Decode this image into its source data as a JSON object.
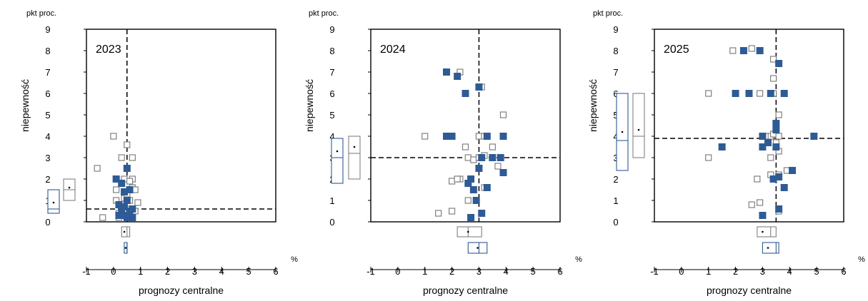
{
  "colors": {
    "filled": "#2e5b95",
    "hollow": "#808080",
    "axis": "#000000"
  },
  "icons": {
    "filled_marker": "filled-square-marker",
    "hollow_marker": "hollow-square-marker"
  },
  "chart_data": [
    {
      "type": "scatter",
      "title": "2023",
      "xlabel": "prognozy centralne",
      "ylabel": "niepewność",
      "y_unit": "pkt proc.",
      "x_unit": "%",
      "xlim": [
        -1,
        6
      ],
      "ylim": [
        0,
        9
      ],
      "x_ticks": [
        "-1",
        "0",
        "1",
        "2",
        "3",
        "4",
        "5",
        "6"
      ],
      "y_ticks": [
        "0",
        "1",
        "2",
        "3",
        "4",
        "5",
        "6",
        "7",
        "8",
        "9"
      ],
      "ref_x": 0.5,
      "ref_y": 0.6,
      "series": [
        {
          "style": "filled",
          "points": [
            [
              0.1,
              2.0
            ],
            [
              0.2,
              0.8
            ],
            [
              0.3,
              0.6
            ],
            [
              0.4,
              0.7
            ],
            [
              0.5,
              2.5
            ],
            [
              0.5,
              1.0
            ],
            [
              0.6,
              0.5
            ],
            [
              0.7,
              0.6
            ],
            [
              0.2,
              0.3
            ],
            [
              0.5,
              0.2
            ],
            [
              0.7,
              0.2
            ],
            [
              0.4,
              0.3
            ],
            [
              0.6,
              1.5
            ],
            [
              0.3,
              1.8
            ],
            [
              0.4,
              1.4
            ]
          ]
        },
        {
          "style": "hollow",
          "points": [
            [
              -0.6,
              2.5
            ],
            [
              0.0,
              4.0
            ],
            [
              0.5,
              3.6
            ],
            [
              0.3,
              3.0
            ],
            [
              0.7,
              3.0
            ],
            [
              0.1,
              1.5
            ],
            [
              0.4,
              2.0
            ],
            [
              0.7,
              2.0
            ],
            [
              0.6,
              1.9
            ],
            [
              0.7,
              1.6
            ],
            [
              0.8,
              1.5
            ],
            [
              0.1,
              1.0
            ],
            [
              0.4,
              1.1
            ],
            [
              0.5,
              1.3
            ],
            [
              0.6,
              1.0
            ],
            [
              0.9,
              0.9
            ],
            [
              0.2,
              0.4
            ],
            [
              0.4,
              0.5
            ],
            [
              0.6,
              0.6
            ],
            [
              -0.4,
              0.2
            ],
            [
              0.2,
              0.2
            ],
            [
              0.8,
              0.5
            ]
          ]
        }
      ],
      "y_boxes": [
        {
          "style": "filled",
          "q1": 0.4,
          "median": 0.6,
          "q3": 1.5,
          "mean": 0.9
        },
        {
          "style": "hollow",
          "q1": 1.0,
          "median": 1.5,
          "q3": 2.0,
          "mean": 1.6
        }
      ],
      "x_boxes": [
        {
          "style": "hollow",
          "q1": 0.3,
          "median": 0.5,
          "q3": 0.6,
          "mean": 0.4
        },
        {
          "style": "filled",
          "q1": 0.4,
          "median": 0.5,
          "q3": 0.5,
          "mean": 0.45
        }
      ]
    },
    {
      "type": "scatter",
      "title": "2024",
      "xlabel": "prognozy centralne",
      "ylabel": "niepewność",
      "y_unit": "pkt proc.",
      "x_unit": "%",
      "xlim": [
        -1,
        6
      ],
      "ylim": [
        0,
        9
      ],
      "x_ticks": [
        "-1",
        "0",
        "1",
        "2",
        "3",
        "4",
        "5",
        "6"
      ],
      "y_ticks": [
        "0",
        "1",
        "2",
        "3",
        "4",
        "5",
        "6",
        "7",
        "8",
        "9"
      ],
      "ref_x": 3.0,
      "ref_y": 3.0,
      "series": [
        {
          "style": "filled",
          "points": [
            [
              1.8,
              7.0
            ],
            [
              2.2,
              6.8
            ],
            [
              2.5,
              6.0
            ],
            [
              3.0,
              6.3
            ],
            [
              1.8,
              4.0
            ],
            [
              2.0,
              4.0
            ],
            [
              3.3,
              4.0
            ],
            [
              3.9,
              4.0
            ],
            [
              3.1,
              3.0
            ],
            [
              3.5,
              3.0
            ],
            [
              3.8,
              3.0
            ],
            [
              3.0,
              2.5
            ],
            [
              3.9,
              2.3
            ],
            [
              2.6,
              1.8
            ],
            [
              2.7,
              2.0
            ],
            [
              2.8,
              1.5
            ],
            [
              3.3,
              1.6
            ],
            [
              2.9,
              1.0
            ],
            [
              2.7,
              0.2
            ],
            [
              3.1,
              0.4
            ]
          ]
        },
        {
          "style": "hollow",
          "points": [
            [
              2.3,
              7.0
            ],
            [
              3.1,
              6.3
            ],
            [
              3.9,
              5.0
            ],
            [
              1.0,
              4.0
            ],
            [
              2.0,
              4.0
            ],
            [
              3.0,
              4.0
            ],
            [
              3.2,
              4.0
            ],
            [
              3.5,
              3.5
            ],
            [
              2.5,
              3.5
            ],
            [
              2.6,
              3.0
            ],
            [
              2.8,
              2.9
            ],
            [
              3.0,
              3.0
            ],
            [
              3.2,
              3.1
            ],
            [
              3.7,
              2.6
            ],
            [
              2.0,
              1.9
            ],
            [
              2.3,
              2.0
            ],
            [
              2.2,
              2.0
            ],
            [
              3.2,
              1.6
            ],
            [
              2.6,
              1.0
            ],
            [
              2.0,
              0.5
            ],
            [
              1.5,
              0.4
            ]
          ]
        }
      ],
      "y_boxes": [
        {
          "style": "filled",
          "q1": 1.8,
          "median": 3.0,
          "q3": 3.9,
          "mean": 3.3
        },
        {
          "style": "hollow",
          "q1": 2.0,
          "median": 3.2,
          "q3": 4.0,
          "mean": 3.5
        }
      ],
      "x_boxes": [
        {
          "style": "hollow",
          "q1": 2.2,
          "median": 2.6,
          "q3": 3.1,
          "mean": 2.6
        },
        {
          "style": "filled",
          "q1": 2.6,
          "median": 3.0,
          "q3": 3.3,
          "mean": 2.95
        }
      ]
    },
    {
      "type": "scatter",
      "title": "2025",
      "xlabel": "prognozy centralne",
      "ylabel": "niepewność",
      "y_unit": "pkt proc.",
      "x_unit": "%",
      "xlim": [
        -1,
        6
      ],
      "ylim": [
        0,
        9
      ],
      "x_ticks": [
        "-1",
        "0",
        "1",
        "2",
        "3",
        "4",
        "5",
        "6"
      ],
      "y_ticks": [
        "0",
        "1",
        "2",
        "3",
        "4",
        "5",
        "6",
        "7",
        "8",
        "9"
      ],
      "ref_x": 3.5,
      "ref_y": 3.9,
      "series": [
        {
          "style": "filled",
          "points": [
            [
              2.3,
              8.0
            ],
            [
              2.9,
              8.0
            ],
            [
              3.6,
              7.4
            ],
            [
              2.0,
              6.0
            ],
            [
              2.5,
              6.0
            ],
            [
              3.3,
              6.0
            ],
            [
              3.8,
              6.0
            ],
            [
              3.5,
              4.6
            ],
            [
              3.5,
              4.3
            ],
            [
              3.0,
              4.0
            ],
            [
              3.2,
              3.7
            ],
            [
              3.0,
              3.5
            ],
            [
              3.5,
              3.5
            ],
            [
              4.9,
              4.0
            ],
            [
              1.5,
              3.5
            ],
            [
              3.4,
              2.0
            ],
            [
              3.6,
              2.1
            ],
            [
              4.1,
              2.4
            ],
            [
              3.8,
              1.6
            ],
            [
              3.6,
              0.6
            ],
            [
              3.0,
              0.3
            ]
          ]
        },
        {
          "style": "hollow",
          "points": [
            [
              1.9,
              8.0
            ],
            [
              2.6,
              8.1
            ],
            [
              3.4,
              7.6
            ],
            [
              3.4,
              6.7
            ],
            [
              1.0,
              6.0
            ],
            [
              2.9,
              6.0
            ],
            [
              3.4,
              6.0
            ],
            [
              3.6,
              5.0
            ],
            [
              3.3,
              4.0
            ],
            [
              3.4,
              4.1
            ],
            [
              3.6,
              4.0
            ],
            [
              3.1,
              4.0
            ],
            [
              3.5,
              3.7
            ],
            [
              3.6,
              3.3
            ],
            [
              1.0,
              3.0
            ],
            [
              3.3,
              3.0
            ],
            [
              3.3,
              2.2
            ],
            [
              3.6,
              2.2
            ],
            [
              3.9,
              2.4
            ],
            [
              2.8,
              2.0
            ],
            [
              3.6,
              0.5
            ],
            [
              2.9,
              0.9
            ],
            [
              2.6,
              0.8
            ]
          ]
        }
      ],
      "y_boxes": [
        {
          "style": "filled",
          "q1": 2.4,
          "median": 3.8,
          "q3": 6.0,
          "mean": 4.2
        },
        {
          "style": "hollow",
          "q1": 3.0,
          "median": 4.0,
          "q3": 6.0,
          "mean": 4.3
        }
      ],
      "x_boxes": [
        {
          "style": "hollow",
          "q1": 2.8,
          "median": 3.3,
          "q3": 3.5,
          "mean": 3.0
        },
        {
          "style": "filled",
          "q1": 3.0,
          "median": 3.5,
          "q3": 3.6,
          "mean": 3.2
        }
      ]
    }
  ]
}
